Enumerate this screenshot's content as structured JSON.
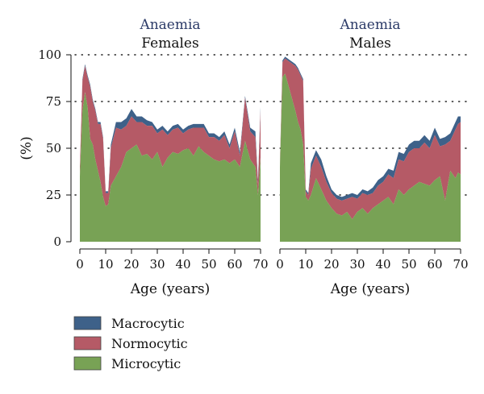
{
  "chart_data": {
    "type": "area",
    "stacked": true,
    "ylabel": "(%)",
    "ylim": [
      0,
      100
    ],
    "yticks": [
      0,
      25,
      50,
      75,
      100
    ],
    "xticks": [
      0,
      10,
      20,
      30,
      40,
      50,
      60,
      70
    ],
    "xlim": [
      0,
      70
    ],
    "grid": "dotted-horizontal",
    "legend_position": "bottom-left",
    "legend": [
      {
        "name": "Macrocytic",
        "color": "#3e6189"
      },
      {
        "name": "Normocytic",
        "color": "#b55a66"
      },
      {
        "name": "Microcytic",
        "color": "#78a255"
      }
    ],
    "panels": [
      {
        "title_top": "Anaemia",
        "title_sub": "Females",
        "xlabel": "Age (years)",
        "x": [
          0,
          1,
          2,
          3,
          4,
          5,
          6,
          7,
          8,
          9,
          10,
          11,
          12,
          14,
          16,
          18,
          20,
          22,
          24,
          26,
          28,
          30,
          32,
          34,
          36,
          38,
          40,
          42,
          44,
          46,
          48,
          50,
          52,
          54,
          56,
          58,
          60,
          62,
          64,
          66,
          68,
          69,
          70
        ],
        "series": [
          {
            "name": "Microcytic",
            "values": [
              35,
              70,
              80,
              72,
              55,
              52,
              44,
              38,
              32,
              24,
              19,
              20,
              30,
              35,
              40,
              48,
              50,
              52,
              46,
              47,
              44,
              48,
              40,
              45,
              48,
              47,
              49,
              50,
              46,
              51,
              48,
              46,
              44,
              43,
              44,
              42,
              44,
              40,
              54,
              44,
              40,
              25,
              45
            ]
          },
          {
            "name": "Normocytic",
            "values": [
              5,
              16,
              14,
              16,
              28,
              23,
              26,
              25,
              31,
              31,
              7,
              6,
              20,
              26,
              20,
              14,
              17,
              12,
              18,
              15,
              18,
              10,
              20,
              12,
              12,
              14,
              9,
              10,
              15,
              10,
              13,
              10,
              12,
              11,
              13,
              8,
              15,
              6,
              23,
              15,
              16,
              6,
              25
            ]
          },
          {
            "name": "Macrocytic",
            "values": [
              0,
              1,
              1,
              1,
              1,
              1,
              1,
              1,
              1,
              1,
              1,
              1,
              2,
              3,
              4,
              4,
              4,
              3,
              3,
              3,
              2,
              2,
              2,
              2,
              2,
              2,
              2,
              2,
              2,
              2,
              2,
              2,
              2,
              2,
              2,
              2,
              2,
              2,
              1,
              2,
              3,
              2,
              2
            ]
          }
        ]
      },
      {
        "title_top": "Anaemia",
        "title_sub": "Males",
        "xlabel": "Age (years)",
        "x": [
          0,
          1,
          2,
          3,
          4,
          5,
          6,
          7,
          8,
          9,
          10,
          11,
          12,
          14,
          16,
          18,
          20,
          22,
          24,
          26,
          28,
          30,
          32,
          34,
          36,
          38,
          40,
          42,
          44,
          46,
          48,
          50,
          52,
          54,
          56,
          58,
          60,
          62,
          64,
          66,
          68,
          69,
          70
        ],
        "series": [
          {
            "name": "Microcytic",
            "values": [
              40,
              88,
              90,
              85,
              80,
              75,
              70,
              64,
              60,
              52,
              24,
              22,
              25,
              34,
              28,
              22,
              18,
              15,
              14,
              16,
              12,
              16,
              18,
              15,
              18,
              20,
              22,
              24,
              20,
              28,
              25,
              28,
              30,
              32,
              31,
              30,
              33,
              35,
              22,
              38,
              34,
              37,
              36
            ]
          },
          {
            "name": "Normocytic",
            "values": [
              2,
              8,
              8,
              12,
              16,
              20,
              24,
              28,
              29,
              34,
              3,
              3,
              14,
              12,
              12,
              10,
              8,
              8,
              8,
              7,
              12,
              7,
              8,
              10,
              8,
              10,
              10,
              12,
              14,
              16,
              18,
              20,
              20,
              18,
              22,
              20,
              24,
              16,
              30,
              16,
              26,
              26,
              28
            ]
          },
          {
            "name": "Macrocytic",
            "values": [
              0,
              1,
              1,
              1,
              1,
              1,
              1,
              1,
              1,
              1,
              1,
              1,
              3,
              3,
              4,
              3,
              2,
              2,
              2,
              2,
              2,
              2,
              2,
              2,
              3,
              3,
              3,
              3,
              4,
              4,
              4,
              4,
              4,
              4,
              4,
              4,
              4,
              4,
              4,
              4,
              4,
              4,
              3
            ]
          }
        ]
      }
    ]
  }
}
